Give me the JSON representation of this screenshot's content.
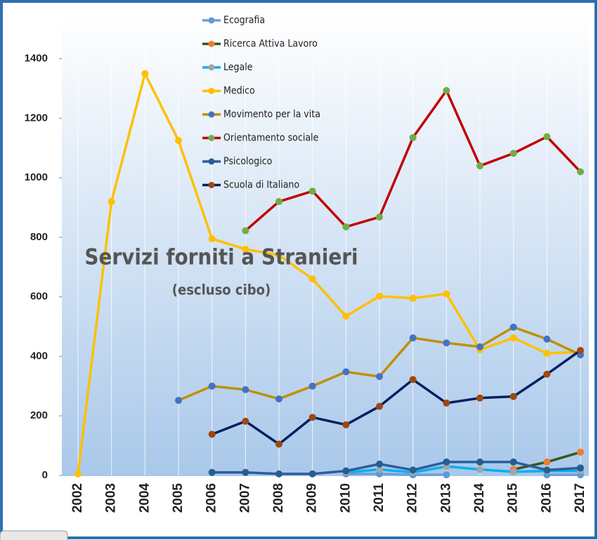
{
  "chart_data": {
    "type": "line",
    "title": "Servizi forniti a Stranieri",
    "subtitle": "(escluso cibo)",
    "categories": [
      "2002",
      "2003",
      "2004",
      "2005",
      "2006",
      "2007",
      "2008",
      "2009",
      "2010",
      "2011",
      "2012",
      "2013",
      "2014",
      "2015",
      "2016",
      "2017"
    ],
    "ylim": [
      0,
      1550
    ],
    "yticks": [
      0,
      200,
      400,
      600,
      800,
      1000,
      1200,
      1400
    ],
    "grid": false,
    "legend": "top",
    "series": [
      {
        "name": "Ecografia",
        "color": "#6f9fd8",
        "marker_color": "#5b9bd5",
        "values": [
          null,
          null,
          null,
          null,
          null,
          null,
          null,
          null,
          5,
          5,
          2,
          2,
          null,
          null,
          2,
          2
        ]
      },
      {
        "name": "Ricerca Attiva Lavoro",
        "color": "#375623",
        "marker_color": "#ed7d31",
        "values": [
          null,
          null,
          null,
          null,
          null,
          null,
          null,
          null,
          null,
          null,
          null,
          null,
          null,
          20,
          45,
          78
        ]
      },
      {
        "name": "Legale",
        "color": "#00b0f0",
        "marker_color": "#a5a5a5",
        "values": [
          null,
          null,
          null,
          null,
          null,
          null,
          null,
          null,
          10,
          20,
          10,
          30,
          20,
          12,
          15,
          15
        ]
      },
      {
        "name": "Medico",
        "color": "#ffc000",
        "marker_color": "#ffc000",
        "values": [
          5,
          920,
          1350,
          1125,
          795,
          760,
          740,
          660,
          535,
          602,
          595,
          610,
          422,
          462,
          410,
          415
        ]
      },
      {
        "name": "Movimento per la vita",
        "color": "#bf9000",
        "marker_color": "#4472c4",
        "values": [
          null,
          null,
          null,
          252,
          300,
          288,
          257,
          300,
          348,
          332,
          462,
          445,
          432,
          498,
          458,
          405
        ]
      },
      {
        "name": "Orientamento sociale",
        "color": "#c00000",
        "marker_color": "#70ad47",
        "values": [
          null,
          null,
          null,
          null,
          null,
          822,
          920,
          955,
          835,
          868,
          1135,
          1293,
          1040,
          1082,
          1138,
          1020
        ]
      },
      {
        "name": "Psicologico",
        "color": "#2e5c9a",
        "marker_color": "#255e91",
        "values": [
          null,
          null,
          null,
          null,
          10,
          10,
          5,
          5,
          15,
          38,
          18,
          45,
          45,
          45,
          18,
          25
        ]
      },
      {
        "name": "Scuola di Italiano",
        "color": "#002060",
        "marker_color": "#9e480e",
        "values": [
          null,
          null,
          null,
          null,
          138,
          182,
          105,
          195,
          170,
          232,
          322,
          243,
          260,
          265,
          340,
          420
        ]
      }
    ]
  }
}
